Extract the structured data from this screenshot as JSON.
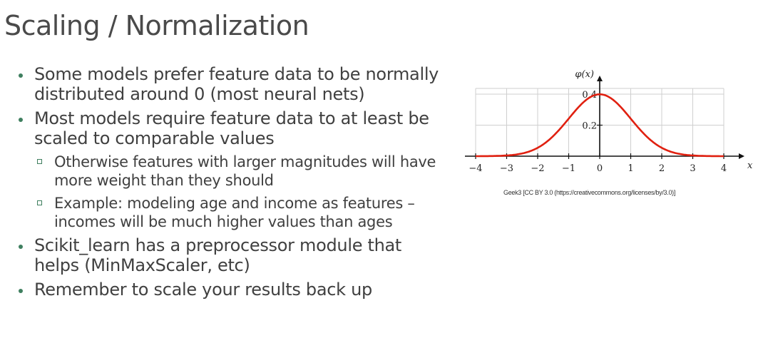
{
  "slide": {
    "title": "Scaling / Normalization",
    "bullets": [
      {
        "text": "Some models prefer feature data to be normally distributed around 0 (most neural nets)"
      },
      {
        "text": "Most models require feature data to at least be scaled to comparable values"
      },
      {
        "text": "Otherwise features with larger magnitudes will have more weight than they should"
      },
      {
        "text": "Example: modeling age and income as features – incomes will be much higher values than ages"
      },
      {
        "text": "Scikit_learn has a preprocessor module that helps (MinMaxScaler, etc)"
      },
      {
        "text": "Remember to scale your results back up"
      }
    ],
    "image_credit": "Geek3 [CC BY 3.0 (https://creativecommons.org/licenses/by/3.0)]"
  },
  "colors": {
    "accent": "#3f7f5f",
    "curve": "#e02010",
    "text": "#404040"
  },
  "chart_data": {
    "type": "line",
    "title": "",
    "xlabel": "x",
    "ylabel": "φ(x)",
    "xlim": [
      -4,
      4
    ],
    "ylim": [
      0,
      0.4
    ],
    "xticks": [
      "−4",
      "−3",
      "−2",
      "−1",
      "0",
      "1",
      "2",
      "3",
      "4"
    ],
    "yticks": [
      "0.2",
      "0.4"
    ],
    "grid": true,
    "series": [
      {
        "function": "standard normal density",
        "x": [
          -4,
          -3.5,
          -3,
          -2.5,
          -2,
          -1.5,
          -1,
          -0.5,
          0,
          0.5,
          1,
          1.5,
          2,
          2.5,
          3,
          3.5,
          4
        ],
        "y": [
          0.0001,
          0.0009,
          0.0044,
          0.0175,
          0.054,
          0.1295,
          0.242,
          0.3521,
          0.3989,
          0.3521,
          0.242,
          0.1295,
          0.054,
          0.0175,
          0.0044,
          0.0009,
          0.0001
        ]
      }
    ]
  }
}
